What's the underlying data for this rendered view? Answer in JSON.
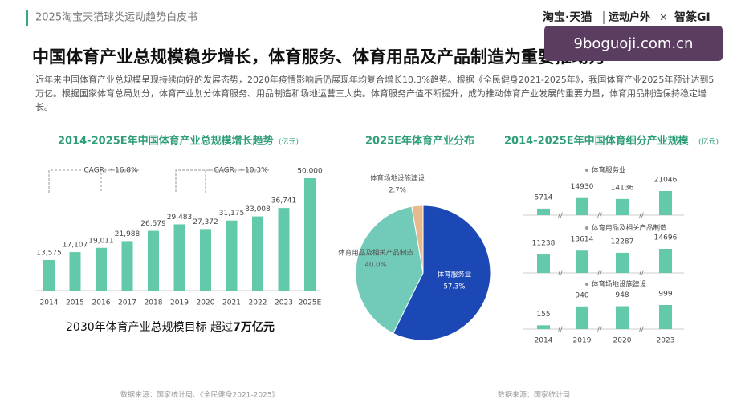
{
  "header": {
    "title": "2025淘宝天猫球类运动趋势白皮书",
    "logos": [
      "淘宝·天猫",
      "运动户外",
      "×",
      "智篆GI"
    ]
  },
  "watermark": "9boguoji.com.cn",
  "title": "中国体育产业总规模稳步增长，体育服务、体育用品及产品制造为重要推动力",
  "paragraph": "近年来中国体育产业总规模呈现持续向好的发展态势，2020年疫情影响后仍展现年均复合增长10.3%趋势。根据《全民健身2021-2025年》，我国体育产业2025年预计达到5万亿。根据国家体育总局划分，体育产业划分体育服务、用品制造和场地运营三大类。体育服务产值不断提升，成为推动体育产业发展的重要力量，体育用品制造保持稳定增长。",
  "chart_data": [
    {
      "type": "bar",
      "title": "2014-2025E年中国体育产业总规模增长趋势",
      "unit": "(亿元)",
      "color": "#63c9ab",
      "categories": [
        "2014",
        "2015",
        "2016",
        "2017",
        "2018",
        "2019",
        "2020",
        "2021",
        "2022",
        "2023",
        "2025E"
      ],
      "values": [
        13575,
        17107,
        19011,
        21988,
        26579,
        29483,
        27372,
        31175,
        33008,
        36741,
        50000
      ],
      "value_labels": [
        "13,575",
        "17,107",
        "19,011",
        "21,988",
        "26,579",
        "29,483",
        "27,372",
        "31,175",
        "33,008",
        "36,741",
        "50,000"
      ],
      "annotations": [
        "CAGR: +16.8%",
        "CAGR: +10.3%"
      ],
      "footnote": [
        "2030年体育产业总规模目标 超过",
        "7万亿元"
      ],
      "source": "数据来源：国家统计局、《全民健身2021-2025》"
    },
    {
      "type": "pie",
      "title": "2025E年体育产业分布",
      "categories": [
        "体育服务业",
        "体育用品及相关产品制造",
        "体育场地设施建设"
      ],
      "values": [
        57.3,
        40.0,
        2.7
      ],
      "value_labels": [
        "57.3%",
        "40.0%",
        "2.7%"
      ],
      "colors": [
        "#1c48b5",
        "#72cbb8",
        "#e8b98c"
      ],
      "source": "数据来源：国家统计局"
    },
    {
      "type": "grouped-rows",
      "title": "2014-2025E年中国体育细分产业规模",
      "unit": "(亿元)",
      "color": "#63c9ab",
      "categories": [
        "2014",
        "2019",
        "2020",
        "2023"
      ],
      "series": [
        {
          "name": "体育服务业",
          "values": [
            5714,
            14930,
            14136,
            21046
          ]
        },
        {
          "name": "体育用品及相关产品制造",
          "values": [
            11238,
            13614,
            12287,
            14696
          ]
        },
        {
          "name": "体育场地设施建设",
          "values": [
            155,
            940,
            948,
            999
          ]
        }
      ]
    }
  ]
}
